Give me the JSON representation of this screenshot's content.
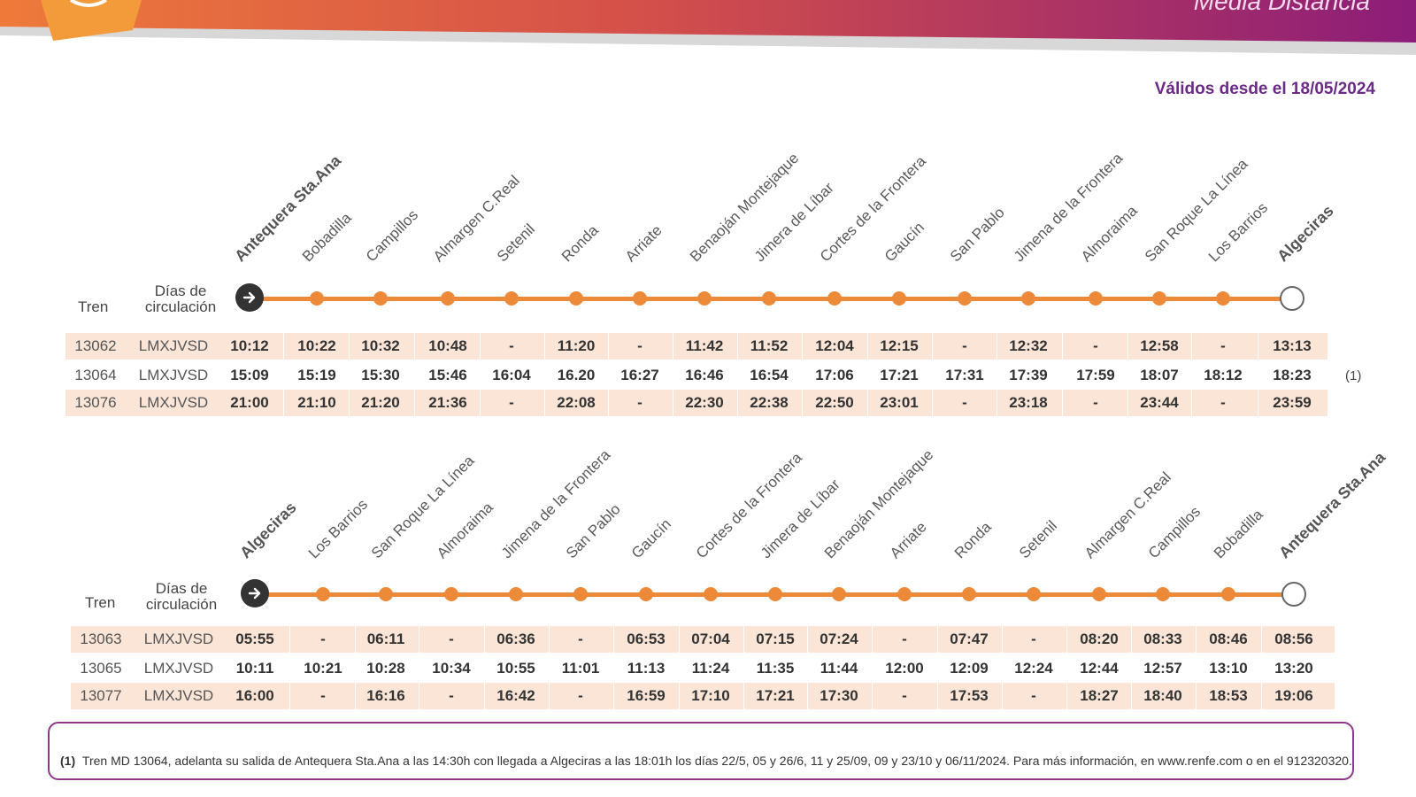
{
  "header": {
    "brand_line": "Media Distancia",
    "valid_text": "Válidos desde el 18/05/2024"
  },
  "colors": {
    "accent": "#ec8a3a",
    "brand_purple": "#6a2a86",
    "row_shade": "#fbe5d7"
  },
  "table_headers": {
    "train": "Tren",
    "days": "Días de circulación"
  },
  "outbound": {
    "stations": [
      "Antequera Sta.Ana",
      "Bobadilla",
      "Campillos",
      "Almargen C.Real",
      "Setenil",
      "Ronda",
      "Arriate",
      "Benaoján Montejaque",
      "Jimera de Líbar",
      "Cortes de la Frontera",
      "Gaucín",
      "San Pablo",
      "Jimena de la Frontera",
      "Almoraima",
      "San Roque La Línea",
      "Los Barrios",
      "Algeciras"
    ],
    "trains": [
      {
        "number": "13062",
        "days": "LMXJVSD",
        "times": [
          "10:12",
          "10:22",
          "10:32",
          "10:48",
          "-",
          "11:20",
          "-",
          "11:42",
          "11:52",
          "12:04",
          "12:15",
          "-",
          "12:32",
          "-",
          "12:58",
          "-",
          "13:13"
        ],
        "note": ""
      },
      {
        "number": "13064",
        "days": "LMXJVSD",
        "times": [
          "15:09",
          "15:19",
          "15:30",
          "15:46",
          "16:04",
          "16.20",
          "16:27",
          "16:46",
          "16:54",
          "17:06",
          "17:21",
          "17:31",
          "17:39",
          "17:59",
          "18:07",
          "18:12",
          "18:23"
        ],
        "note": "(1)"
      },
      {
        "number": "13076",
        "days": "LMXJVSD",
        "times": [
          "21:00",
          "21:10",
          "21:20",
          "21:36",
          "-",
          "22:08",
          "-",
          "22:30",
          "22:38",
          "22:50",
          "23:01",
          "-",
          "23:18",
          "-",
          "23:44",
          "-",
          "23:59"
        ],
        "note": ""
      }
    ]
  },
  "inbound": {
    "stations": [
      "Algeciras",
      "Los Barrios",
      "San Roque La Línea",
      "Almoraima",
      "Jimena de la Frontera",
      "San Pablo",
      "Gaucín",
      "Cortes de la Frontera",
      "Jimera de Líbar",
      "Benaoján Montejaque",
      "Arriate",
      "Ronda",
      "Setenil",
      "Almargen C.Real",
      "Campillos",
      "Bobadilla",
      "Antequera Sta.Ana"
    ],
    "trains": [
      {
        "number": "13063",
        "days": "LMXJVSD",
        "times": [
          "05:55",
          "-",
          "06:11",
          "-",
          "06:36",
          "-",
          "06:53",
          "07:04",
          "07:15",
          "07:24",
          "-",
          "07:47",
          "-",
          "08:20",
          "08:33",
          "08:46",
          "08:56"
        ]
      },
      {
        "number": "13065",
        "days": "LMXJVSD",
        "times": [
          "10:11",
          "10:21",
          "10:28",
          "10:34",
          "10:55",
          "11:01",
          "11:13",
          "11:24",
          "11:35",
          "11:44",
          "12:00",
          "12:09",
          "12:24",
          "12:44",
          "12:57",
          "13:10",
          "13:20"
        ]
      },
      {
        "number": "13077",
        "days": "LMXJVSD",
        "times": [
          "16:00",
          "-",
          "16:16",
          "-",
          "16:42",
          "-",
          "16:59",
          "17:10",
          "17:21",
          "17:30",
          "-",
          "17:53",
          "-",
          "18:27",
          "18:40",
          "18:53",
          "19:06"
        ]
      }
    ]
  },
  "footnote": {
    "ref": "(1)",
    "text": "Tren MD 13064, adelanta su salida de Antequera Sta.Ana a las 14:30h con llegada a Algeciras a las 18:01h los días 22/5, 05 y 26/6, 11 y 25/09, 09 y 23/10 y 06/11/2024. Para más información, en www.renfe.com o en el 912320320."
  }
}
